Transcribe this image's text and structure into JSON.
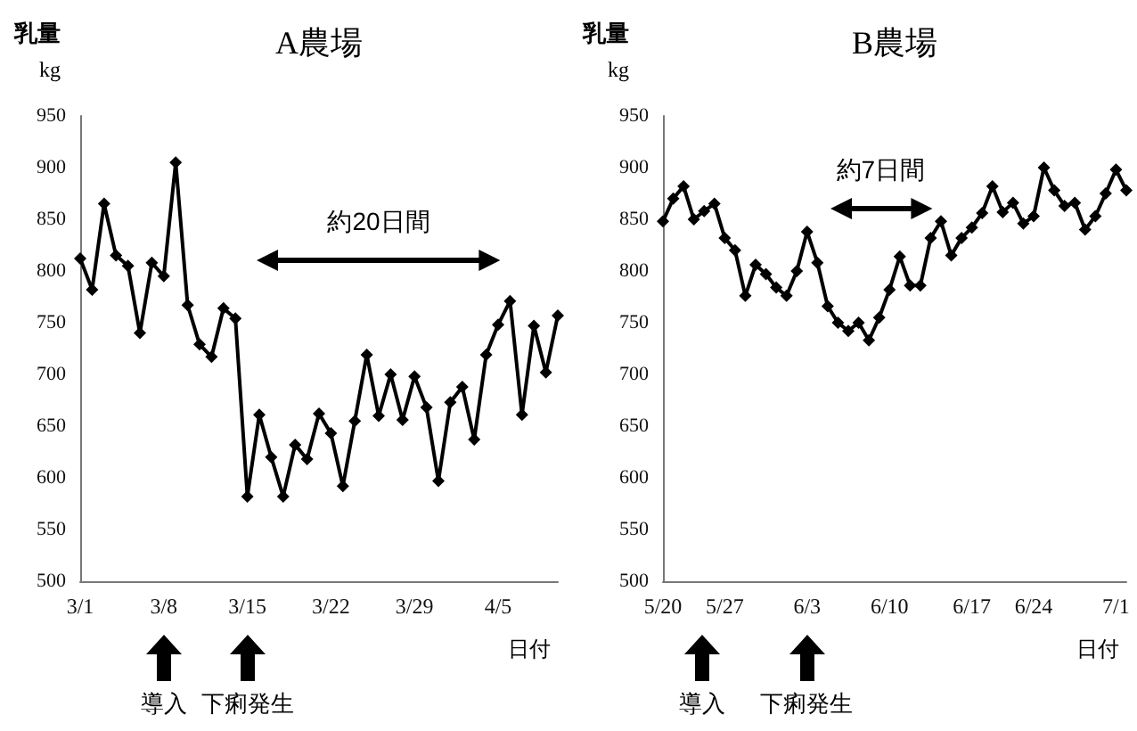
{
  "chart_data": [
    {
      "type": "line",
      "title": "A農場",
      "ylabel": "乳量\nkg",
      "xlabel": "日付",
      "categories": [
        "3/1",
        null,
        null,
        null,
        null,
        null,
        null,
        "3/8",
        null,
        null,
        null,
        null,
        null,
        null,
        "3/15",
        null,
        null,
        null,
        null,
        null,
        null,
        "3/22",
        null,
        null,
        null,
        null,
        null,
        null,
        "3/29",
        null,
        null,
        null,
        null,
        null,
        null,
        "4/5",
        null,
        null,
        null,
        null,
        null
      ],
      "series": [
        {
          "color": "#000000",
          "values": [
            812,
            782,
            865,
            815,
            805,
            740,
            808,
            795,
            905,
            767,
            729,
            717,
            764,
            754,
            582,
            661,
            620,
            582,
            632,
            618,
            662,
            643,
            592,
            655,
            719,
            660,
            700,
            656,
            698,
            668,
            597,
            673,
            688,
            637,
            719,
            748,
            771,
            661,
            747,
            702,
            757
          ]
        }
      ],
      "ylim": [
        500,
        950
      ],
      "yticks": [
        500,
        550,
        600,
        650,
        700,
        750,
        800,
        850,
        900,
        950
      ],
      "grid": false,
      "marker": "diamond",
      "line_style": "solid",
      "annotations": [
        "約20日間",
        "導入",
        "下痢発生"
      ]
    },
    {
      "type": "line",
      "title": "B農場",
      "ylabel": "乳量\nkg",
      "xlabel": "日付",
      "categories": [
        "5/20",
        null,
        null,
        null,
        null,
        null,
        "5/27",
        null,
        null,
        null,
        null,
        null,
        null,
        null,
        "6/3",
        null,
        null,
        null,
        null,
        null,
        null,
        null,
        "6/10",
        null,
        null,
        null,
        null,
        null,
        null,
        null,
        "6/17",
        null,
        null,
        null,
        null,
        null,
        "6/24",
        null,
        null,
        null,
        null,
        null,
        null,
        null,
        "7/1",
        null
      ],
      "series": [
        {
          "color": "#000000",
          "values": [
            848,
            870,
            882,
            850,
            858,
            865,
            832,
            820,
            776,
            806,
            797,
            784,
            776,
            800,
            838,
            808,
            766,
            750,
            742,
            750,
            733,
            755,
            782,
            814,
            786,
            786,
            832,
            848,
            815,
            832,
            842,
            856,
            882,
            857,
            866,
            846,
            853,
            900,
            878,
            863,
            866,
            840,
            853,
            875,
            898,
            878
          ]
        }
      ],
      "ylim": [
        500,
        950
      ],
      "yticks": [
        500,
        550,
        600,
        650,
        700,
        750,
        800,
        850,
        900,
        950
      ],
      "grid": false,
      "marker": "diamond",
      "line_style": "solid",
      "annotations": [
        "約7日間",
        "導入",
        "下痢発生"
      ]
    }
  ]
}
